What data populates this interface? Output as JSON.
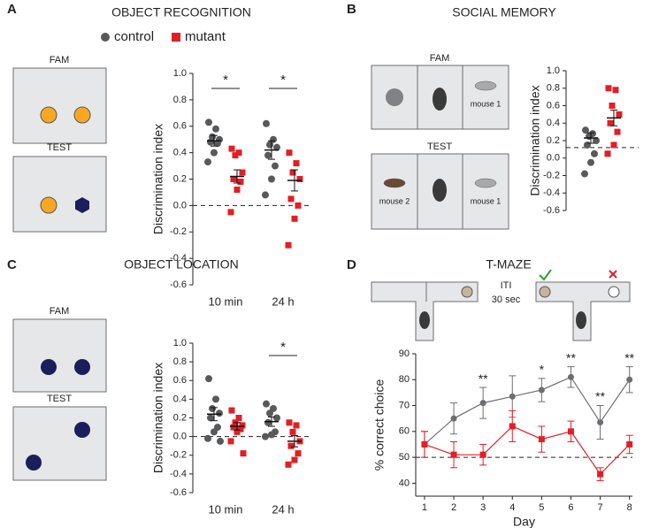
{
  "chart_data": [
    {
      "type": "dotplot",
      "panel": "A",
      "title": "OBJECT RECOGNITION",
      "ylabel": "Discrimination index",
      "diagram_labels": [
        "FAM",
        "TEST"
      ],
      "categories": [
        "10 min",
        "24 h"
      ],
      "ylim": [
        -0.6,
        1.0
      ],
      "yticks": [
        -0.6,
        -0.4,
        -0.2,
        {
          "value": 0,
          "label": "0.0"
        },
        0.2,
        0.4,
        0.6,
        0.8,
        {
          "value": 1,
          "label": "1.0"
        }
      ],
      "reference_line": 0,
      "significance": [
        "*",
        "*"
      ],
      "series": [
        {
          "name": "control",
          "color": "#58595b",
          "values": [
            [
              0.63,
              0.58,
              0.52,
              0.5,
              0.48,
              0.47,
              0.4,
              0.33
            ],
            [
              0.62,
              0.5,
              0.46,
              0.44,
              0.38,
              0.3,
              0.2,
              0.08
            ]
          ],
          "means": [
            0.49,
            0.42
          ],
          "sems": [
            0.04,
            0.07
          ]
        },
        {
          "name": "mutant",
          "color": "#e31e24",
          "values": [
            [
              0.43,
              0.4,
              0.38,
              0.25,
              0.2,
              0.18,
              0.12,
              -0.05
            ],
            [
              0.4,
              0.32,
              0.25,
              0.2,
              0.05,
              0.0,
              -0.1,
              -0.3
            ]
          ],
          "means": [
            0.22,
            0.19
          ],
          "sems": [
            0.05,
            0.08
          ]
        }
      ]
    },
    {
      "type": "dotplot",
      "panel": "B",
      "title": "SOCIAL MEMORY",
      "ylabel": "Discrimination index",
      "diagram_labels": [
        "FAM",
        "TEST",
        "mouse 1",
        "mouse 2",
        "mouse 1"
      ],
      "categories": [
        null
      ],
      "ylim": [
        -0.6,
        1.0
      ],
      "yticks": [
        -0.6,
        -0.4,
        -0.2,
        {
          "value": 0,
          "label": "0.0"
        },
        0.2,
        0.4,
        0.6,
        0.8,
        {
          "value": 1,
          "label": "1.0"
        }
      ],
      "reference_line": 0.12,
      "series": [
        {
          "color": "#58595b",
          "values": [
            [
              0.32,
              0.28,
              0.25,
              0.2,
              0.15,
              0.05,
              -0.05,
              -0.18
            ]
          ],
          "means": [
            0.23
          ],
          "sems": [
            0.06
          ]
        },
        {
          "color": "#e31e24",
          "values": [
            [
              0.8,
              0.78,
              0.6,
              0.5,
              0.4,
              0.3,
              0.15,
              0.05
            ]
          ],
          "means": [
            0.46
          ],
          "sems": [
            0.09
          ]
        }
      ]
    },
    {
      "type": "dotplot",
      "panel": "C",
      "title": "OBJECT LOCATION",
      "ylabel": "Discrimination index",
      "diagram_labels": [
        "FAM",
        "TEST"
      ],
      "categories": [
        "10 min",
        "24 h"
      ],
      "ylim": [
        -0.6,
        1.0
      ],
      "yticks": [
        -0.6,
        -0.4,
        -0.2,
        {
          "value": 0,
          "label": "0.0"
        },
        0.2,
        0.4,
        0.6,
        0.8,
        {
          "value": 1,
          "label": "1.0"
        }
      ],
      "reference_line": 0,
      "significance": [
        null,
        "*"
      ],
      "series": [
        {
          "color": "#58595b",
          "values": [
            [
              0.62,
              0.4,
              0.3,
              0.25,
              0.2,
              0.1,
              0.05,
              -0.02,
              -0.05
            ],
            [
              0.35,
              0.3,
              0.25,
              0.2,
              0.15,
              0.05,
              0.02,
              0.0
            ]
          ],
          "means": [
            0.24,
            0.16
          ],
          "sems": [
            0.07,
            0.05
          ]
        },
        {
          "color": "#e31e24",
          "values": [
            [
              0.28,
              0.2,
              0.15,
              0.12,
              0.1,
              0.08,
              0.05,
              -0.05,
              -0.18
            ],
            [
              0.15,
              0.12,
              0.05,
              -0.05,
              -0.1,
              -0.18,
              -0.25,
              -0.3
            ]
          ],
          "means": [
            0.11,
            -0.05
          ],
          "sems": [
            0.04,
            0.06
          ]
        }
      ]
    },
    {
      "type": "line",
      "panel": "D",
      "title": "T-MAZE",
      "ylabel": "% correct choice",
      "xlabel": "Day",
      "diagram_labels": [
        "ITI",
        "30 sec"
      ],
      "x": [
        1,
        2,
        3,
        4,
        5,
        6,
        7,
        8
      ],
      "xlim": [
        0.7,
        8.1
      ],
      "xticks": [
        1,
        2,
        3,
        4,
        5,
        6,
        7,
        8
      ],
      "ylim": [
        35,
        90
      ],
      "yticks": [
        40,
        50,
        60,
        70,
        80,
        90
      ],
      "reference_line": 50,
      "significance": [
        null,
        null,
        "**",
        null,
        "*",
        "**",
        "**",
        "**"
      ],
      "series": [
        {
          "color": "#6d6e71",
          "values": [
            55,
            65,
            71,
            73.5,
            76,
            81,
            63.5,
            80
          ],
          "errors": [
            5,
            6,
            6,
            8,
            4.5,
            4,
            6.5,
            5
          ]
        },
        {
          "color": "#e31e24",
          "values": [
            55,
            51,
            51,
            62,
            57,
            60,
            43.5,
            55
          ],
          "errors": [
            5,
            5,
            4,
            6,
            5,
            4,
            2.5,
            3.5
          ]
        }
      ]
    }
  ]
}
